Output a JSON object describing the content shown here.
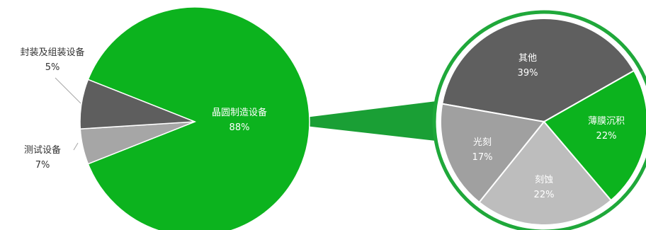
{
  "chart_data": [
    {
      "type": "pie",
      "slices": [
        {
          "label": "晶圆制造设备",
          "pct_label": "88%",
          "value": 88,
          "color": "#0cb31e",
          "label_color": "#ffffff"
        },
        {
          "label": "封装及组装设备",
          "pct_label": "5%",
          "value": 5,
          "color": "#a6a6a6",
          "label_color": "#333333"
        },
        {
          "label": "测试设备",
          "pct_label": "7%",
          "value": 7,
          "color": "#5e5e5e",
          "label_color": "#333333"
        }
      ]
    },
    {
      "type": "pie",
      "exploded_from": "晶圆制造设备",
      "slices": [
        {
          "label": "其他",
          "pct_label": "39%",
          "value": 39,
          "color": "#5f5f5f",
          "label_color": "#ffffff"
        },
        {
          "label": "薄膜沉积",
          "pct_label": "22%",
          "value": 22,
          "color": "#0cb31e",
          "label_color": "#ffffff"
        },
        {
          "label": "刻蚀",
          "pct_label": "22%",
          "value": 22,
          "color": "#bdbdbd",
          "label_color": "#ffffff"
        },
        {
          "label": "光刻",
          "pct_label": "17%",
          "value": 17,
          "color": "#a0a0a0",
          "label_color": "#ffffff"
        }
      ]
    }
  ]
}
